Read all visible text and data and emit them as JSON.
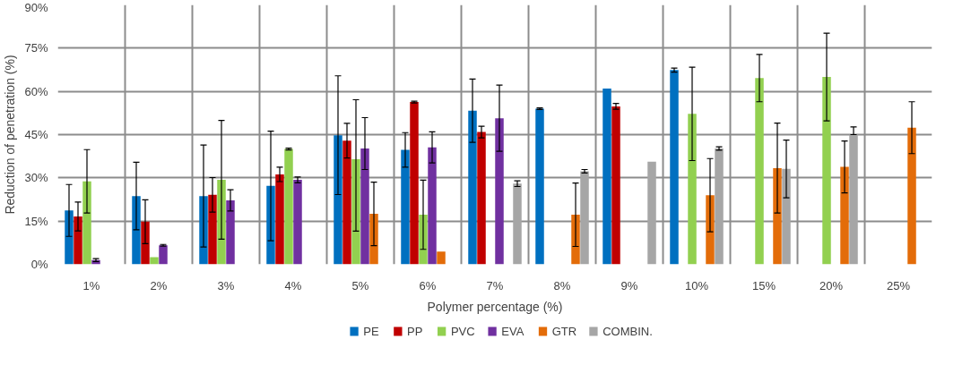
{
  "chart_data": {
    "type": "bar",
    "xlabel": "Polymer percentage (%)",
    "ylabel": "Reduction of penetration (%)",
    "categories": [
      "1%",
      "2%",
      "3%",
      "4%",
      "5%",
      "6%",
      "7%",
      "8%",
      "9%",
      "10%",
      "15%",
      "20%",
      "25%"
    ],
    "ylim": [
      0,
      90
    ],
    "yticks": [
      {
        "value": 0,
        "label": "0%"
      },
      {
        "value": 15,
        "label": "15%"
      },
      {
        "value": 30,
        "label": "30%"
      },
      {
        "value": 45,
        "label": "45%"
      },
      {
        "value": 60,
        "label": "60%"
      },
      {
        "value": 75,
        "label": "75%"
      },
      {
        "value": 90,
        "label": "90%"
      }
    ],
    "grid": true,
    "legend": "bottom",
    "series": [
      {
        "name": "PE",
        "color": "#0070c0",
        "values": [
          18.7,
          23.7,
          23.7,
          27.2,
          44.8,
          39.7,
          53.3,
          54.0,
          61.0,
          67.4,
          null,
          null,
          null
        ],
        "errors": [
          9,
          11.7,
          17.7,
          19,
          20.6,
          6,
          11,
          0.3,
          null,
          0.7,
          null,
          null,
          null
        ]
      },
      {
        "name": "PP",
        "color": "#c00000",
        "values": [
          16.6,
          14.8,
          24.1,
          31.2,
          42.9,
          56.3,
          45.9,
          null,
          54.8,
          null,
          null,
          null,
          null
        ],
        "errors": [
          5,
          7.6,
          6,
          2.5,
          6,
          0.3,
          2,
          null,
          1,
          null,
          null,
          null,
          null
        ]
      },
      {
        "name": "PVC",
        "color": "#92d050",
        "values": [
          28.8,
          2.5,
          29.3,
          40.0,
          36.5,
          17.2,
          null,
          null,
          null,
          52.2,
          64.6,
          65.0,
          null
        ],
        "errors": [
          11,
          null,
          20.6,
          0.3,
          [
            11.5,
            57.1
          ],
          12,
          null,
          null,
          null,
          16.2,
          8.2,
          15.2,
          null
        ]
      },
      {
        "name": "EVA",
        "color": "#7030a0",
        "values": [
          1.5,
          6.6,
          22.2,
          29.3,
          40.2,
          40.6,
          50.7,
          null,
          null,
          null,
          null,
          null,
          null
        ],
        "errors": [
          0.5,
          0.3,
          3.7,
          1,
          [
            32.9,
            50.9
          ],
          5.4,
          11.5,
          null,
          null,
          null,
          null,
          null,
          null
        ]
      },
      {
        "name": "GTR",
        "color": "#e36c09",
        "values": [
          null,
          null,
          null,
          null,
          17.5,
          4.4,
          null,
          17.2,
          null,
          24.0,
          33.4,
          33.8,
          47.4
        ],
        "errors": [
          null,
          null,
          null,
          null,
          11,
          null,
          null,
          11,
          null,
          12.7,
          15.6,
          9,
          9
        ]
      },
      {
        "name": "COMBIN.",
        "color": "#a6a6a6",
        "values": [
          null,
          null,
          null,
          null,
          null,
          null,
          28.0,
          32.3,
          35.6,
          40.2,
          33.1,
          45.0,
          null
        ],
        "errors": [
          null,
          null,
          null,
          null,
          null,
          null,
          1,
          0.6,
          null,
          0.6,
          10,
          [
            45.0,
            47.7
          ],
          null
        ]
      }
    ]
  }
}
